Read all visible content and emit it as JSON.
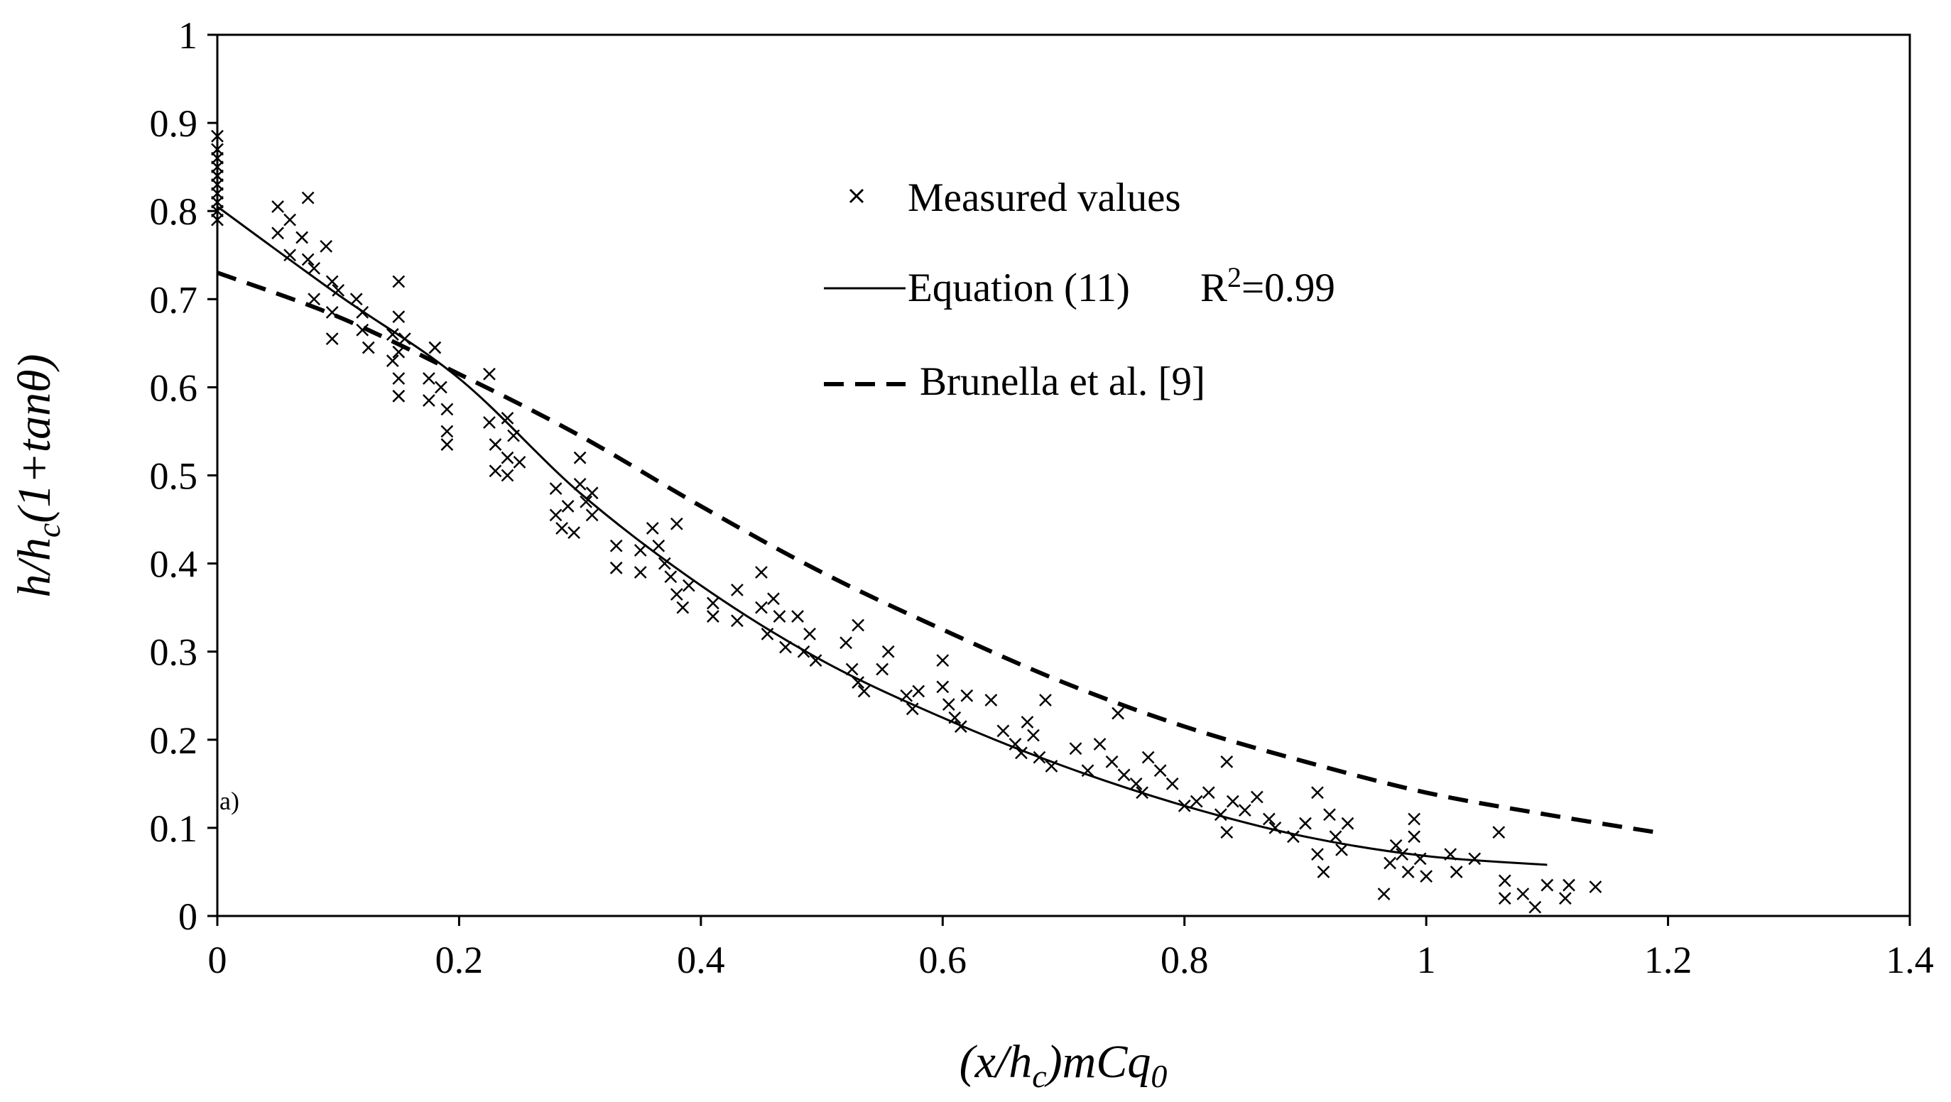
{
  "chart_data": {
    "type": "scatter",
    "xlabel_parts": [
      "(x/h",
      "c",
      ")mCq",
      "0"
    ],
    "ylabel_parts": [
      "h/h",
      "c",
      "(1+tanθ)"
    ],
    "xlim": [
      0,
      1.4
    ],
    "ylim": [
      0,
      1
    ],
    "xticks": [
      "0",
      "0.2",
      "0.4",
      "0.6",
      "0.8",
      "1",
      "1.2",
      "1.4"
    ],
    "yticks": [
      "0",
      "0.1",
      "0.2",
      "0.3",
      "0.4",
      "0.5",
      "0.6",
      "0.7",
      "0.8",
      "0.9",
      "1"
    ],
    "grid": false,
    "legend_position": "upper-center",
    "annotation": "a)",
    "legend": {
      "measured": "Measured values",
      "equation": "Equation (11)",
      "r2_prefix": "R",
      "r2_sup": "2",
      "r2_value": "=0.99",
      "brunella": "Brunella et al. [9]"
    },
    "series": [
      {
        "name": "Measured values",
        "style": "x-marker",
        "points": [
          [
            0,
            0.885
          ],
          [
            0,
            0.87
          ],
          [
            0,
            0.86
          ],
          [
            0,
            0.85
          ],
          [
            0,
            0.84
          ],
          [
            0,
            0.83
          ],
          [
            0,
            0.82
          ],
          [
            0,
            0.81
          ],
          [
            0,
            0.8
          ],
          [
            0,
            0.79
          ],
          [
            0.05,
            0.805
          ],
          [
            0.05,
            0.775
          ],
          [
            0.06,
            0.79
          ],
          [
            0.06,
            0.75
          ],
          [
            0.07,
            0.77
          ],
          [
            0.075,
            0.815
          ],
          [
            0.075,
            0.745
          ],
          [
            0.08,
            0.735
          ],
          [
            0.08,
            0.7
          ],
          [
            0.09,
            0.76
          ],
          [
            0.095,
            0.72
          ],
          [
            0.095,
            0.685
          ],
          [
            0.095,
            0.655
          ],
          [
            0.1,
            0.71
          ],
          [
            0.115,
            0.7
          ],
          [
            0.12,
            0.685
          ],
          [
            0.12,
            0.665
          ],
          [
            0.125,
            0.645
          ],
          [
            0.145,
            0.66
          ],
          [
            0.145,
            0.63
          ],
          [
            0.15,
            0.72
          ],
          [
            0.15,
            0.68
          ],
          [
            0.15,
            0.64
          ],
          [
            0.15,
            0.61
          ],
          [
            0.15,
            0.59
          ],
          [
            0.155,
            0.655
          ],
          [
            0.175,
            0.61
          ],
          [
            0.175,
            0.585
          ],
          [
            0.18,
            0.645
          ],
          [
            0.185,
            0.6
          ],
          [
            0.19,
            0.575
          ],
          [
            0.19,
            0.55
          ],
          [
            0.19,
            0.535
          ],
          [
            0.225,
            0.615
          ],
          [
            0.225,
            0.56
          ],
          [
            0.23,
            0.535
          ],
          [
            0.23,
            0.505
          ],
          [
            0.24,
            0.52
          ],
          [
            0.24,
            0.5
          ],
          [
            0.24,
            0.565
          ],
          [
            0.245,
            0.545
          ],
          [
            0.25,
            0.515
          ],
          [
            0.28,
            0.485
          ],
          [
            0.28,
            0.455
          ],
          [
            0.285,
            0.44
          ],
          [
            0.29,
            0.465
          ],
          [
            0.295,
            0.435
          ],
          [
            0.3,
            0.52
          ],
          [
            0.3,
            0.49
          ],
          [
            0.305,
            0.47
          ],
          [
            0.31,
            0.455
          ],
          [
            0.31,
            0.48
          ],
          [
            0.33,
            0.42
          ],
          [
            0.33,
            0.395
          ],
          [
            0.35,
            0.415
          ],
          [
            0.35,
            0.39
          ],
          [
            0.36,
            0.44
          ],
          [
            0.365,
            0.42
          ],
          [
            0.37,
            0.4
          ],
          [
            0.375,
            0.385
          ],
          [
            0.38,
            0.445
          ],
          [
            0.38,
            0.365
          ],
          [
            0.385,
            0.35
          ],
          [
            0.39,
            0.375
          ],
          [
            0.41,
            0.355
          ],
          [
            0.41,
            0.34
          ],
          [
            0.43,
            0.37
          ],
          [
            0.43,
            0.335
          ],
          [
            0.45,
            0.39
          ],
          [
            0.45,
            0.35
          ],
          [
            0.455,
            0.32
          ],
          [
            0.46,
            0.36
          ],
          [
            0.465,
            0.34
          ],
          [
            0.47,
            0.305
          ],
          [
            0.48,
            0.34
          ],
          [
            0.485,
            0.3
          ],
          [
            0.49,
            0.32
          ],
          [
            0.495,
            0.29
          ],
          [
            0.52,
            0.31
          ],
          [
            0.525,
            0.28
          ],
          [
            0.53,
            0.265
          ],
          [
            0.53,
            0.33
          ],
          [
            0.535,
            0.255
          ],
          [
            0.55,
            0.28
          ],
          [
            0.555,
            0.3
          ],
          [
            0.57,
            0.25
          ],
          [
            0.575,
            0.235
          ],
          [
            0.58,
            0.255
          ],
          [
            0.6,
            0.29
          ],
          [
            0.6,
            0.26
          ],
          [
            0.605,
            0.24
          ],
          [
            0.61,
            0.225
          ],
          [
            0.615,
            0.215
          ],
          [
            0.62,
            0.25
          ],
          [
            0.64,
            0.245
          ],
          [
            0.65,
            0.21
          ],
          [
            0.66,
            0.195
          ],
          [
            0.665,
            0.185
          ],
          [
            0.67,
            0.22
          ],
          [
            0.675,
            0.205
          ],
          [
            0.68,
            0.18
          ],
          [
            0.685,
            0.245
          ],
          [
            0.69,
            0.17
          ],
          [
            0.71,
            0.19
          ],
          [
            0.72,
            0.165
          ],
          [
            0.73,
            0.195
          ],
          [
            0.74,
            0.175
          ],
          [
            0.745,
            0.23
          ],
          [
            0.75,
            0.16
          ],
          [
            0.76,
            0.15
          ],
          [
            0.765,
            0.14
          ],
          [
            0.77,
            0.18
          ],
          [
            0.78,
            0.165
          ],
          [
            0.79,
            0.15
          ],
          [
            0.8,
            0.125
          ],
          [
            0.81,
            0.13
          ],
          [
            0.82,
            0.14
          ],
          [
            0.83,
            0.115
          ],
          [
            0.835,
            0.175
          ],
          [
            0.835,
            0.095
          ],
          [
            0.84,
            0.13
          ],
          [
            0.85,
            0.12
          ],
          [
            0.86,
            0.135
          ],
          [
            0.87,
            0.11
          ],
          [
            0.875,
            0.1
          ],
          [
            0.89,
            0.09
          ],
          [
            0.9,
            0.105
          ],
          [
            0.91,
            0.14
          ],
          [
            0.91,
            0.07
          ],
          [
            0.915,
            0.05
          ],
          [
            0.92,
            0.115
          ],
          [
            0.925,
            0.09
          ],
          [
            0.93,
            0.075
          ],
          [
            0.935,
            0.105
          ],
          [
            0.965,
            0.025
          ],
          [
            0.97,
            0.06
          ],
          [
            0.975,
            0.08
          ],
          [
            0.98,
            0.07
          ],
          [
            0.985,
            0.05
          ],
          [
            0.99,
            0.11
          ],
          [
            0.99,
            0.09
          ],
          [
            0.995,
            0.065
          ],
          [
            1.0,
            0.045
          ],
          [
            1.02,
            0.07
          ],
          [
            1.025,
            0.05
          ],
          [
            1.04,
            0.065
          ],
          [
            1.06,
            0.095
          ],
          [
            1.065,
            0.04
          ],
          [
            1.065,
            0.02
          ],
          [
            1.08,
            0.025
          ],
          [
            1.09,
            0.01
          ],
          [
            1.1,
            0.035
          ],
          [
            1.115,
            0.02
          ],
          [
            1.118,
            0.035
          ],
          [
            1.14,
            0.033
          ]
        ]
      },
      {
        "name": "Equation (11)",
        "style": "solid",
        "points": [
          [
            0,
            0.805
          ],
          [
            0.1,
            0.705
          ],
          [
            0.2,
            0.61
          ],
          [
            0.3,
            0.48
          ],
          [
            0.4,
            0.375
          ],
          [
            0.5,
            0.29
          ],
          [
            0.6,
            0.225
          ],
          [
            0.7,
            0.17
          ],
          [
            0.8,
            0.125
          ],
          [
            0.9,
            0.09
          ],
          [
            1.0,
            0.068
          ],
          [
            1.1,
            0.058
          ]
        ]
      },
      {
        "name": "Brunella et al. [9]",
        "style": "dashed",
        "points": [
          [
            0,
            0.73
          ],
          [
            0.1,
            0.68
          ],
          [
            0.2,
            0.615
          ],
          [
            0.3,
            0.545
          ],
          [
            0.4,
            0.465
          ],
          [
            0.5,
            0.39
          ],
          [
            0.6,
            0.325
          ],
          [
            0.7,
            0.265
          ],
          [
            0.8,
            0.215
          ],
          [
            0.9,
            0.175
          ],
          [
            1.0,
            0.14
          ],
          [
            1.1,
            0.115
          ],
          [
            1.19,
            0.095
          ]
        ]
      }
    ]
  }
}
